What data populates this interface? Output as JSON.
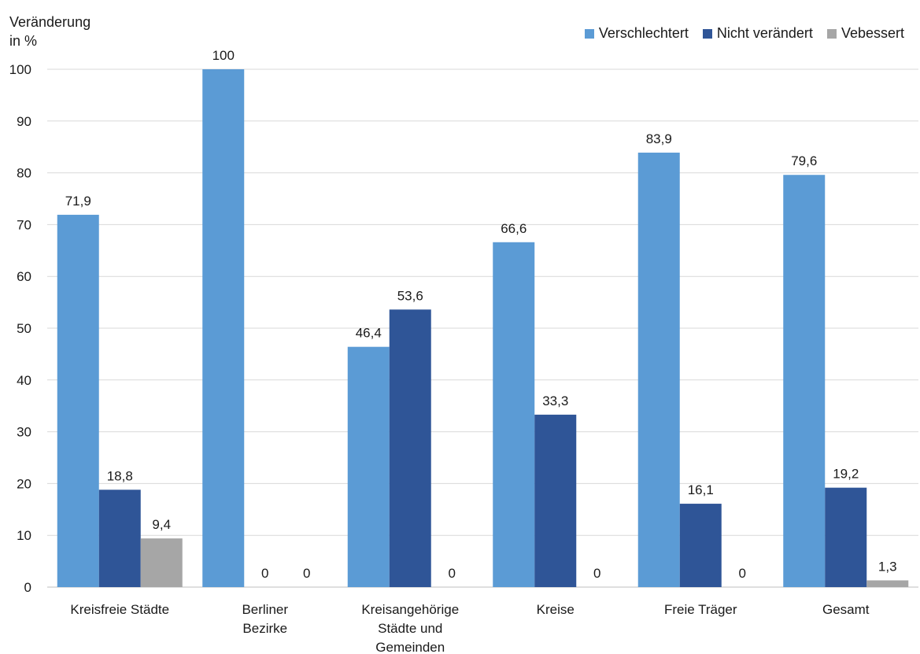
{
  "chart_data": {
    "type": "bar",
    "ylabel_lines": [
      "Veränderung",
      "in %"
    ],
    "categories": [
      [
        "Kreisfreie Städte"
      ],
      [
        "Berliner",
        "Bezirke"
      ],
      [
        "Kreisangehörige",
        "Städte und",
        "Gemeinden"
      ],
      [
        "Kreise"
      ],
      [
        "Freie Träger"
      ],
      [
        "Gesamt"
      ]
    ],
    "series": [
      {
        "name": "Verschlechtert",
        "color": "#5b9bd5",
        "values": [
          71.9,
          100,
          46.4,
          66.6,
          83.9,
          79.6
        ],
        "labels": [
          "71,9",
          "100",
          "46,4",
          "66,6",
          "83,9",
          "79,6"
        ]
      },
      {
        "name": "Nicht verändert",
        "color": "#2f5597",
        "values": [
          18.8,
          0,
          53.6,
          33.3,
          16.1,
          19.2
        ],
        "labels": [
          "18,8",
          "0",
          "53,6",
          "33,3",
          "16,1",
          "19,2"
        ]
      },
      {
        "name": "Vebessert",
        "color": "#a6a6a6",
        "values": [
          9.4,
          0,
          0,
          0,
          0,
          1.3
        ],
        "labels": [
          "9,4",
          "0",
          "0",
          "0",
          "0",
          "1,3"
        ]
      }
    ],
    "ylim": [
      0,
      100
    ],
    "yticks": [
      0,
      10,
      20,
      30,
      40,
      50,
      60,
      70,
      80,
      90,
      100
    ],
    "grid": true,
    "legend_position": "top-right"
  }
}
